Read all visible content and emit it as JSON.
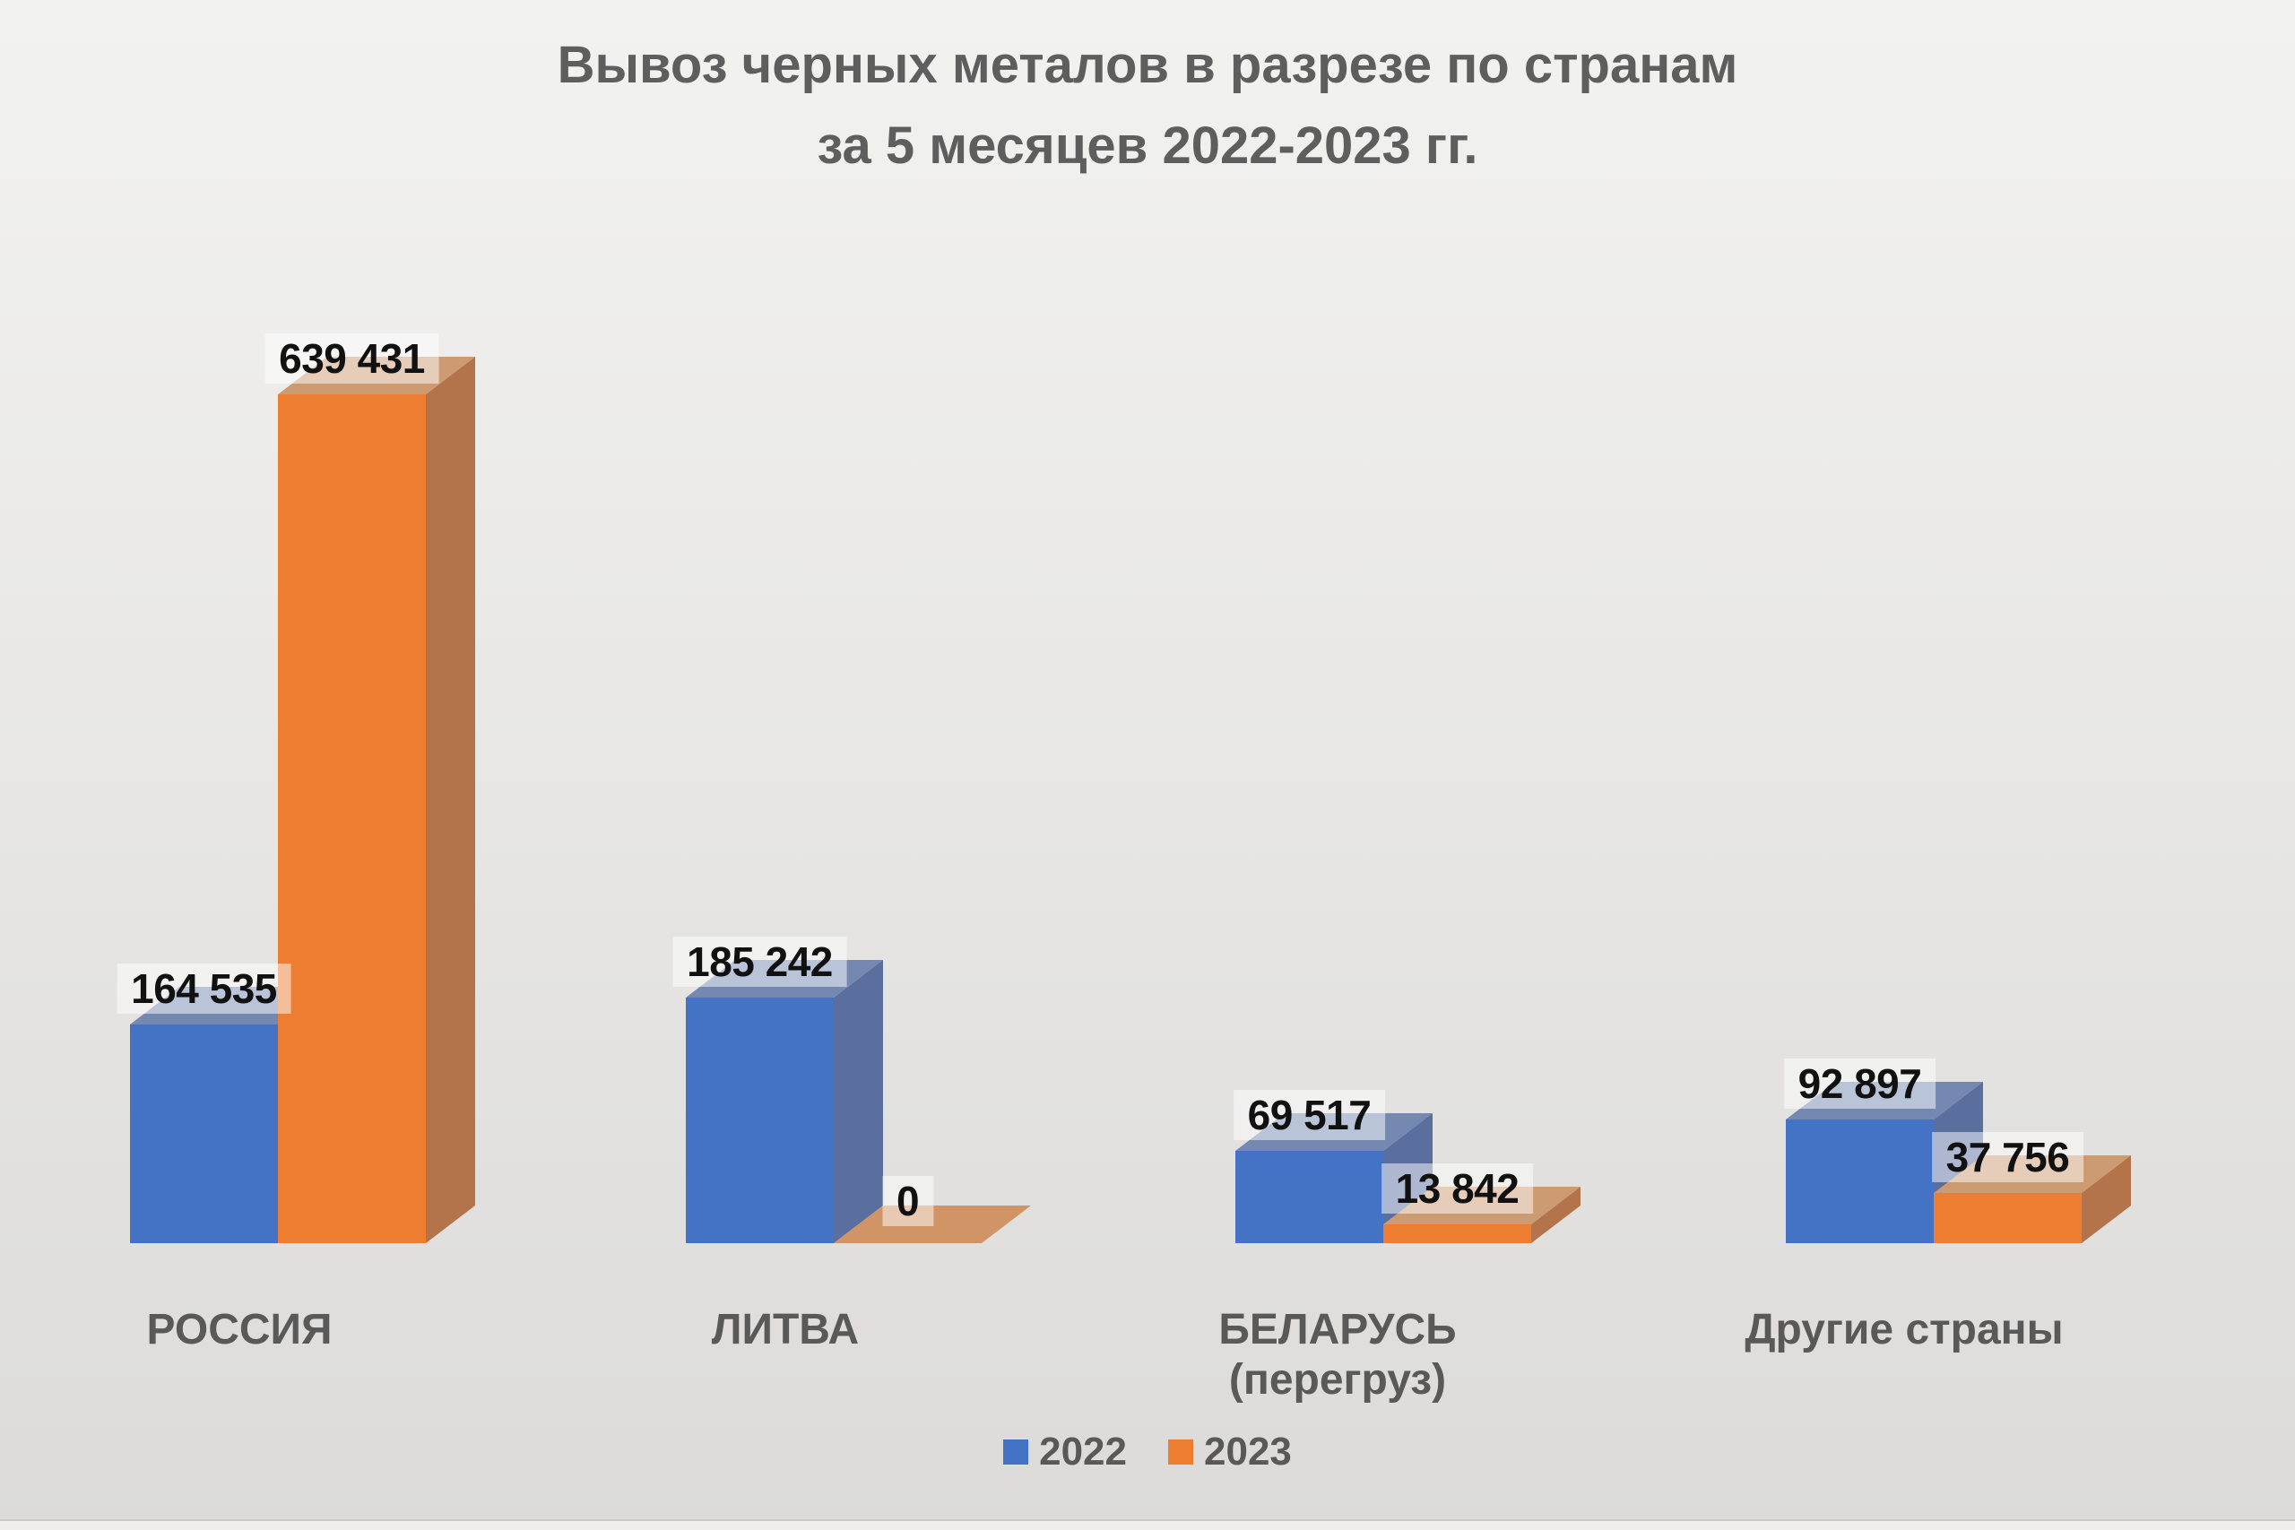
{
  "title": {
    "line1": "Вывоз черных металов в разрезе по странам",
    "line2": "за 5 месяцев 2022-2023 гг."
  },
  "colors": {
    "s2022_front": "#4472C4",
    "s2022_top": "#7588B1",
    "s2022_side": "#5A6F9E",
    "s2023_front": "#ED7D31",
    "s2023_top": "#CC9B72",
    "s2023_side": "#B3744B",
    "s2023_flat": "#D09467",
    "plate": "rgba(255,255,255,0.5)",
    "label_text": "#111111",
    "gray_text": "#595959",
    "title_text": "#5E5E5E"
  },
  "chart_data": {
    "type": "bar",
    "subtype": "3d-clustered-column",
    "title": "Вывоз черных металов в разрезе по странам за 5 месяцев 2022-2023 гг.",
    "title_lines": [
      "Вывоз черных металов в разрезе по странам",
      "за 5 месяцев 2022-2023 гг."
    ],
    "categories": [
      "РОССИЯ",
      "ЛИТВА",
      "БЕЛАРУСЬ (перегруз)",
      "Другие страны"
    ],
    "category_lines": [
      [
        "РОССИЯ"
      ],
      [
        "ЛИТВА"
      ],
      [
        "БЕЛАРУСЬ",
        "(перегруз)"
      ],
      [
        "Другие страны"
      ]
    ],
    "series": [
      {
        "name": "2022",
        "color": "#4472C4",
        "values": [
          164535,
          185242,
          69517,
          92897
        ],
        "data_labels": [
          "164 535",
          "185 242",
          "69 517",
          "92 897"
        ]
      },
      {
        "name": "2023",
        "color": "#ED7D31",
        "values": [
          639431,
          0,
          13842,
          37756
        ],
        "data_labels": [
          "639 431",
          "0",
          "13 842",
          "37 756"
        ]
      }
    ],
    "legend": {
      "position": "bottom",
      "entries": [
        "2022",
        "2023"
      ]
    },
    "value_axis": {
      "visible": false
    },
    "gridlines": false,
    "ylim": [
      0,
      700000
    ]
  }
}
